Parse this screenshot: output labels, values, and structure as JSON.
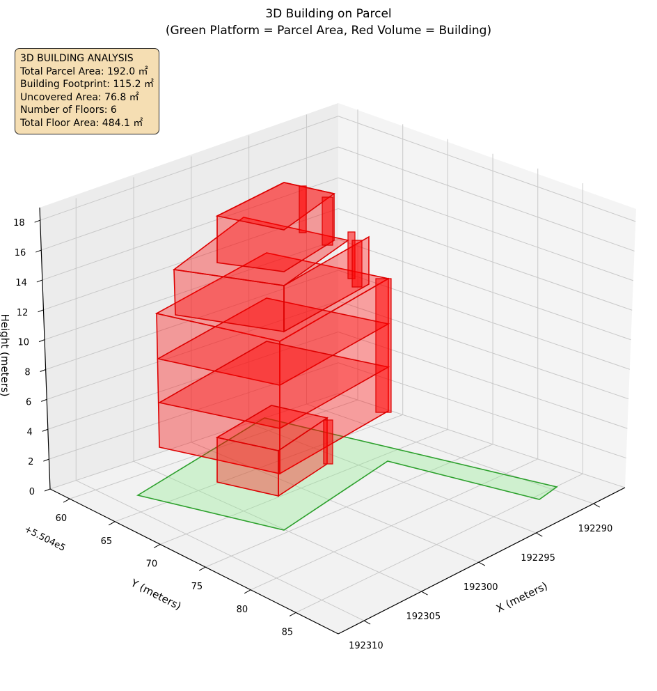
{
  "chart_data": {
    "type": "3d-polygon",
    "title": "3D Building on Parcel",
    "subtitle": "(Green Platform = Parcel Area, Red Volume = Building)",
    "xlabel": "X (meters)",
    "ylabel": "Y (meters)",
    "zlabel": "Height (meters)",
    "y_offset": "+5.504e5",
    "x_ticks": [
      "192290",
      "192295",
      "192300",
      "192305",
      "192310"
    ],
    "y_ticks": [
      "60",
      "65",
      "70",
      "75",
      "80",
      "85"
    ],
    "z_ticks": [
      "0",
      "2",
      "4",
      "6",
      "8",
      "10",
      "12",
      "14",
      "16",
      "18"
    ],
    "zlim": [
      0,
      18
    ],
    "grid": true,
    "series": [
      {
        "name": "Parcel Area",
        "color": "#2ca02c",
        "fill": "#90ee90"
      },
      {
        "name": "Building",
        "color": "#dd0000",
        "fill": "#ff0000",
        "floors": 6
      }
    ]
  },
  "info": {
    "title": "3D BUILDING ANALYSIS",
    "lines": [
      "Total Parcel Area: 192.0 ㎡",
      "Building Footprint: 115.2 ㎡",
      "Uncovered Area: 76.8 ㎡",
      "Number of Floors: 6",
      "Total Floor Area: 484.1 ㎡"
    ]
  }
}
